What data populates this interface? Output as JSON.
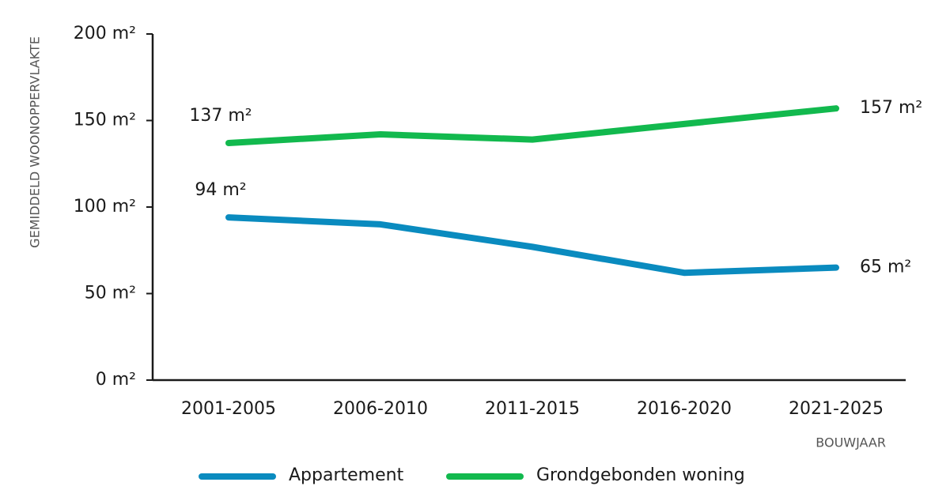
{
  "chart_data": {
    "type": "line",
    "y_label": "GEMIDDELD WOONOPPERVLAKTE",
    "x_label": "BOUWJAAR",
    "categories": [
      "2001-2005",
      "2006-2010",
      "2011-2015",
      "2016-2020",
      "2021-2025"
    ],
    "series": [
      {
        "name": "Appartement",
        "color": "#0a8bbf",
        "values": [
          94,
          90,
          77,
          62,
          65
        ],
        "value_labels": [
          "94 m²",
          null,
          null,
          null,
          "65 m²"
        ]
      },
      {
        "name": "Grondgebonden woning",
        "color": "#12b94e",
        "values": [
          137,
          142,
          139,
          148,
          157
        ],
        "value_labels": [
          "137 m²",
          null,
          null,
          null,
          "157 m²"
        ]
      }
    ],
    "ylim": [
      0,
      200
    ],
    "yticks": [
      {
        "value": 0,
        "label": "0 m²"
      },
      {
        "value": 50,
        "label": "50 m²"
      },
      {
        "value": 100,
        "label": "100 m²"
      },
      {
        "value": 150,
        "label": "150 m²"
      },
      {
        "value": 200,
        "label": "200 m²"
      }
    ],
    "grid": false
  }
}
